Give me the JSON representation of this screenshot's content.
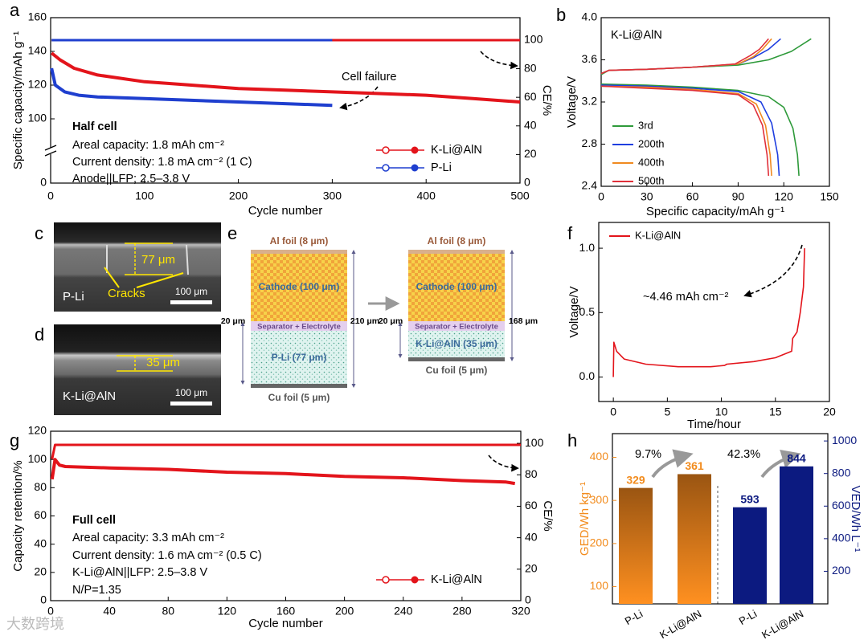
{
  "chart_data": [
    {
      "type": "line",
      "label": "a",
      "xlabel": "Cycle number",
      "ylabel": "Specific capacity/mAh g⁻¹",
      "y2label": "CE/%",
      "xlim": [
        0,
        500
      ],
      "xticks": [
        0,
        100,
        200,
        300,
        400,
        500
      ],
      "ylim": [
        0,
        160
      ],
      "yticks": [
        0,
        100,
        120,
        140,
        160
      ],
      "axis_break": true,
      "y2lim": [
        0,
        115.7
      ],
      "y2ticks": [
        0,
        20,
        40,
        60,
        80,
        100
      ],
      "series": [
        {
          "name": "K-Li@AlN",
          "color": "#e3141b",
          "marker": "filled",
          "x": [
            1,
            10,
            25,
            50,
            100,
            150,
            200,
            250,
            300,
            350,
            400,
            450,
            500
          ],
          "values": [
            139,
            135,
            130,
            126,
            122,
            120,
            118,
            117,
            116,
            115,
            114,
            112,
            110
          ]
        },
        {
          "color": "#e3141b",
          "marker": "open",
          "axis": "y2",
          "x": [
            1,
            500
          ],
          "values": [
            100,
            100
          ]
        },
        {
          "name": "P-Li",
          "color": "#1f3fcf",
          "marker": "filled",
          "x": [
            1,
            5,
            15,
            30,
            50,
            100,
            150,
            200,
            250,
            300
          ],
          "values": [
            130,
            120,
            116,
            114,
            113,
            112,
            111,
            110,
            109,
            108
          ]
        },
        {
          "color": "#1f3fcf",
          "marker": "open",
          "axis": "y2",
          "x": [
            1,
            300
          ],
          "values": [
            100,
            100
          ]
        }
      ],
      "annotations": [
        "Half cell",
        "Areal capacity: 1.8 mAh cm⁻²",
        "Current density: 1.8 mA cm⁻² (1 C)",
        "Anode||LFP; 2.5–3.8 V",
        "Cell failure"
      ]
    },
    {
      "type": "line",
      "label": "b",
      "xlabel": "Specific capacity/mAh g⁻¹",
      "ylabel": "Voltage/V",
      "xlim": [
        0,
        150
      ],
      "xticks": [
        0,
        30,
        60,
        90,
        120,
        150
      ],
      "ylim": [
        2.4,
        4.0
      ],
      "yticks": [
        2.4,
        2.8,
        3.2,
        3.6,
        {
          "value": 4,
          "label": "4.0"
        }
      ],
      "series": [
        {
          "name": "3rd",
          "color": "#2e9a3a",
          "x": [
            0,
            30,
            60,
            90,
            110,
            120,
            126,
            129,
            130
          ],
          "values": [
            3.37,
            3.36,
            3.34,
            3.31,
            3.25,
            3.15,
            2.95,
            2.7,
            2.5
          ]
        },
        {
          "color": "#2e9a3a",
          "x": [
            0,
            5,
            30,
            60,
            90,
            110,
            125,
            138
          ],
          "values": [
            3.46,
            3.5,
            3.51,
            3.53,
            3.55,
            3.6,
            3.68,
            3.8
          ]
        },
        {
          "name": "200th",
          "color": "#1f3fe0",
          "x": [
            0,
            30,
            60,
            90,
            105,
            112,
            116,
            117
          ],
          "values": [
            3.36,
            3.35,
            3.33,
            3.3,
            3.2,
            3.0,
            2.7,
            2.5
          ]
        },
        {
          "color": "#1f3fe0",
          "x": [
            0,
            5,
            30,
            60,
            90,
            100,
            110,
            118
          ],
          "values": [
            3.47,
            3.5,
            3.51,
            3.53,
            3.56,
            3.62,
            3.7,
            3.8
          ]
        },
        {
          "name": "400th",
          "color": "#f08a20",
          "x": [
            0,
            30,
            60,
            90,
            102,
            108,
            111,
            112
          ],
          "values": [
            3.35,
            3.34,
            3.32,
            3.28,
            3.18,
            2.98,
            2.7,
            2.5
          ]
        },
        {
          "color": "#f08a20",
          "x": [
            0,
            5,
            30,
            60,
            90,
            100,
            106,
            112
          ],
          "values": [
            3.47,
            3.5,
            3.51,
            3.53,
            3.56,
            3.63,
            3.7,
            3.8
          ]
        },
        {
          "name": "500th",
          "color": "#e0303a",
          "x": [
            0,
            30,
            60,
            90,
            100,
            106,
            109,
            110
          ],
          "values": [
            3.35,
            3.33,
            3.31,
            3.27,
            3.17,
            2.98,
            2.7,
            2.5
          ]
        },
        {
          "color": "#e0303a",
          "x": [
            0,
            5,
            30,
            60,
            88,
            98,
            104,
            110
          ],
          "values": [
            3.47,
            3.5,
            3.51,
            3.53,
            3.56,
            3.64,
            3.7,
            3.8
          ]
        }
      ],
      "annotations": [
        "K-Li@AlN"
      ]
    },
    {
      "type": "line",
      "label": "f",
      "xlabel": "Time/hour",
      "ylabel": "Voltage/V",
      "xlim": [
        -1.35,
        20
      ],
      "xticks": [
        0,
        5,
        10,
        15,
        20
      ],
      "ylim": [
        -0.19,
        1.2
      ],
      "yticks": [
        {
          "value": 0,
          "label": "0.0"
        },
        0.5,
        {
          "value": 1,
          "label": "1.0"
        }
      ],
      "series": [
        {
          "name": "K-Li@AlN",
          "color": "#e3141b",
          "x": [
            0,
            0.05,
            0.3,
            1,
            3,
            6,
            9,
            10.3,
            10.5,
            13,
            15,
            16.5,
            16.6,
            17,
            17.3,
            17.6,
            17.7
          ],
          "values": [
            0,
            0.27,
            0.2,
            0.14,
            0.1,
            0.08,
            0.08,
            0.09,
            0.1,
            0.12,
            0.15,
            0.2,
            0.3,
            0.35,
            0.5,
            0.7,
            1.0
          ]
        }
      ],
      "annotations": [
        "~4.46 mAh cm⁻²"
      ]
    },
    {
      "type": "line",
      "label": "g",
      "xlabel": "Cycle number",
      "ylabel": "Capacity retention/%",
      "y2label": "CE/%",
      "xlim": [
        0,
        320
      ],
      "xticks": [
        0,
        40,
        80,
        120,
        160,
        200,
        240,
        280,
        320
      ],
      "ylim": [
        0,
        120
      ],
      "yticks": [
        0,
        20,
        40,
        60,
        80,
        100,
        120
      ],
      "y2lim": [
        0,
        107.7
      ],
      "y2ticks": [
        0,
        20,
        40,
        60,
        80,
        100
      ],
      "series": [
        {
          "color": "#e3141b",
          "marker": "open",
          "axis": "y2",
          "x": [
            1,
            3,
            6,
            320
          ],
          "values": [
            90,
            99,
            99,
            99
          ]
        },
        {
          "name": "K-Li@AlN",
          "color": "#e3141b",
          "marker": "filled",
          "x": [
            1,
            3,
            6,
            10,
            40,
            80,
            120,
            160,
            200,
            240,
            280,
            310,
            316
          ],
          "values": [
            86,
            100,
            96,
            95,
            94,
            93,
            91,
            90,
            88,
            87,
            85,
            84,
            83
          ]
        }
      ],
      "annotations": [
        "Full cell",
        "Areal capacity: 3.3 mAh cm⁻²",
        "Current density: 1.6 mA cm⁻² (0.5 C)",
        "K-Li@AlN||LFP: 2.5–3.8 V",
        "N/P=1.35"
      ]
    },
    {
      "type": "bar",
      "label": "h",
      "ylabel": "GED/Wh kg⁻¹",
      "y2label": "VED/Wh L⁻¹",
      "categories": [
        "P-Li",
        "K-Li@AlN"
      ],
      "ylim": [
        60,
        455
      ],
      "yticks": [
        100,
        200,
        300,
        400
      ],
      "y2lim": [
        0,
        1045
      ],
      "y2ticks": [
        200,
        400,
        600,
        800,
        1000
      ],
      "series": [
        {
          "color": "#f28c1e",
          "values": [
            329,
            361
          ]
        },
        {
          "color": "#0c1a80",
          "axis": "y2",
          "values": [
            593,
            844
          ]
        }
      ],
      "annotations": [
        "9.7%",
        "42.3%"
      ]
    }
  ],
  "panel_c": {
    "label": "c",
    "thickness": "77 μm",
    "note": "Cracks",
    "scale_bar": "100 μm",
    "sample": "P-Li"
  },
  "panel_d": {
    "label": "d",
    "thickness": "35 μm",
    "scale_bar": "100 μm",
    "sample": "K-Li@AlN"
  },
  "panel_e": {
    "label": "e",
    "left": {
      "al_foil": "Al foil (8 μm)",
      "cathode": "Cathode (100 μm)",
      "separator": "Separator + Electrolyte",
      "anode": "P-Li (77 μm)",
      "cu_foil": "Cu foil (5 μm)",
      "separator_thickness": "20 μm",
      "total": "210 μm"
    },
    "right": {
      "al_foil": "Al foil (8 μm)",
      "cathode": "Cathode (100 μm)",
      "separator": "Separator + Electrolyte",
      "anode": "K-Li@AlN (35 μm)",
      "cu_foil": "Cu foil (5 μm)",
      "separator_thickness": "20 μm",
      "total": "168 μm"
    }
  },
  "watermark": "大数跨境"
}
